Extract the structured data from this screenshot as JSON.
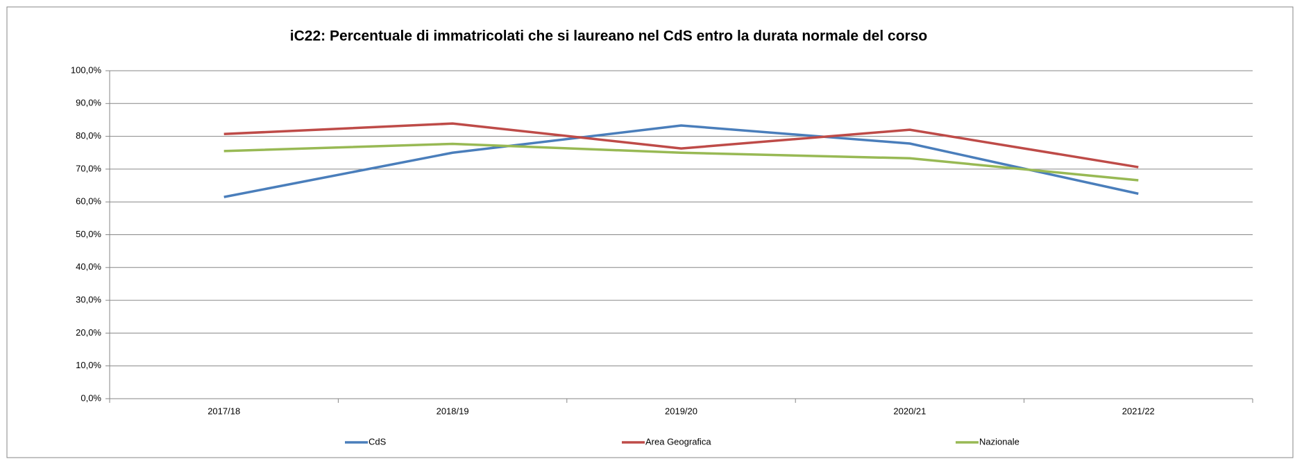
{
  "chart_data": {
    "type": "line",
    "title": "iC22: Percentuale di immatricolati che si laureano nel CdS entro la durata normale del corso",
    "categories": [
      "2017/18",
      "2018/19",
      "2019/20",
      "2020/21",
      "2021/22"
    ],
    "series": [
      {
        "name": "CdS",
        "color": "#4a7ebb",
        "values": [
          61.5,
          75.0,
          83.3,
          77.8,
          62.5
        ]
      },
      {
        "name": "Area Geografica",
        "color": "#be4b48",
        "values": [
          80.7,
          83.9,
          76.3,
          82.0,
          70.6
        ]
      },
      {
        "name": "Nazionale",
        "color": "#98b954",
        "values": [
          75.5,
          77.7,
          75.0,
          73.3,
          66.6
        ]
      }
    ],
    "ylim": [
      0,
      100
    ],
    "yticks": [
      {
        "value": 0,
        "label": "0,0%"
      },
      {
        "value": 10,
        "label": "10,0%"
      },
      {
        "value": 20,
        "label": "20,0%"
      },
      {
        "value": 30,
        "label": "30,0%"
      },
      {
        "value": 40,
        "label": "40,0%"
      },
      {
        "value": 50,
        "label": "50,0%"
      },
      {
        "value": 60,
        "label": "60,0%"
      },
      {
        "value": 70,
        "label": "70,0%"
      },
      {
        "value": 80,
        "label": "80,0%"
      },
      {
        "value": 90,
        "label": "90,0%"
      },
      {
        "value": 100,
        "label": "100,0%"
      }
    ],
    "grid": true,
    "legend": "bottom"
  }
}
